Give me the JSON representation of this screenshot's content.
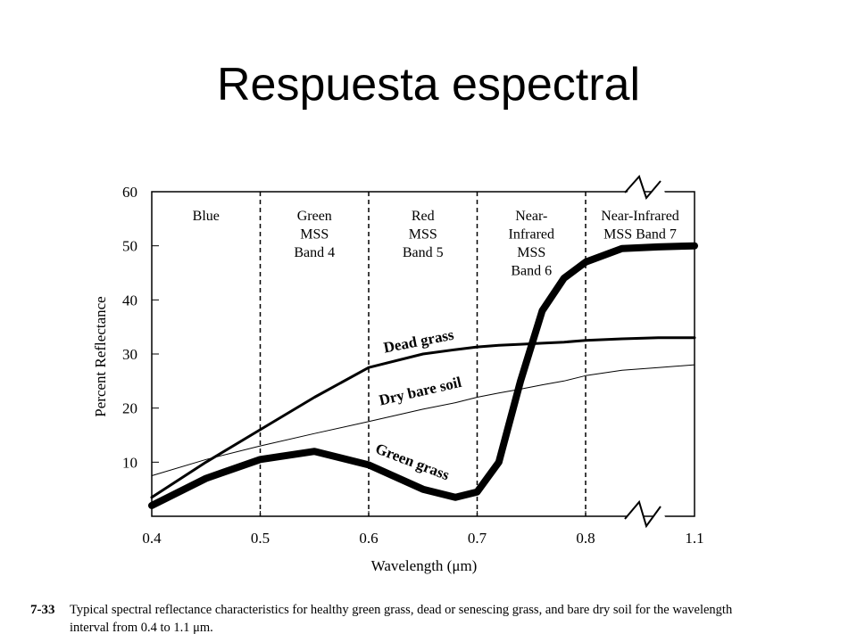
{
  "slide_title": "Respuesta espectral",
  "chart_data": {
    "type": "line",
    "y_label": "Percent Reflectance",
    "x_label": "Wavelength (μm)",
    "xlim": [
      0.4,
      1.1
    ],
    "ylim": [
      0,
      60
    ],
    "xticks": [
      0.4,
      0.5,
      0.6,
      0.7,
      0.8,
      1.1
    ],
    "yticks": [
      10,
      20,
      30,
      40,
      50,
      60
    ],
    "axis_break": {
      "after": 0.8
    },
    "band_edges": [
      0.5,
      0.6,
      0.7,
      0.8
    ],
    "bands": [
      [
        "Blue"
      ],
      [
        "Green",
        "MSS",
        "Band 4"
      ],
      [
        "Red",
        "MSS",
        "Band 5"
      ],
      [
        "Near-",
        "Infrared",
        "MSS",
        "Band 6"
      ],
      [
        "Near-Infrared",
        "MSS Band 7"
      ]
    ],
    "x": [
      0.4,
      0.45,
      0.5,
      0.55,
      0.6,
      0.65,
      0.68,
      0.7,
      0.72,
      0.74,
      0.76,
      0.78,
      0.8,
      0.9,
      1.0,
      1.1
    ],
    "series": [
      {
        "name": "Green grass",
        "color": "#000000",
        "line_width": 8,
        "values": [
          2,
          7,
          10.5,
          12,
          9.5,
          5,
          3.5,
          4.5,
          10,
          25,
          38,
          44,
          47,
          49.5,
          49.8,
          50
        ]
      },
      {
        "name": "Dead grass",
        "color": "#000000",
        "line_width": 3,
        "values": [
          3.5,
          10,
          16,
          22,
          27.5,
          30,
          30.8,
          31.3,
          31.6,
          31.8,
          32,
          32.2,
          32.5,
          32.8,
          33,
          33
        ]
      },
      {
        "name": "Dry bare soil",
        "color": "#000000",
        "line_width": 1,
        "values": [
          7.5,
          10.5,
          13,
          15.3,
          17.5,
          19.8,
          21,
          22,
          22.8,
          23.5,
          24.3,
          25,
          26,
          27,
          27.5,
          28
        ]
      }
    ],
    "caption": {
      "number": "7-33",
      "lines": [
        "Typical spectral reflectance characteristics for healthy green grass, dead or senescing grass, and bare dry soil for the wavelength",
        "interval from 0.4 to 1.1 μm."
      ]
    }
  }
}
